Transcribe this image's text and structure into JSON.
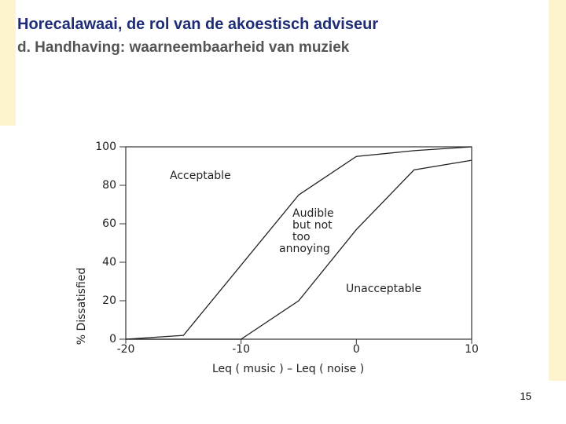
{
  "slide": {
    "title": "Horecalawaai, de rol van de akoestisch adviseur",
    "subtitle": "d. Handhaving: waarneembaarheid van muziek",
    "page_number": "15"
  },
  "chart_data": {
    "type": "line",
    "x_label": "Leq ( music ) – Leq ( noise )",
    "y_label": "% Dissatisfied",
    "annotations": [
      "Acceptable",
      [
        "Audible",
        "but not",
        "too",
        "annoying"
      ],
      "Unacceptable"
    ],
    "series": [
      {
        "color": "#222222",
        "x": [
          -20,
          -15,
          -5,
          0,
          5,
          10
        ],
        "values": [
          0,
          2,
          75,
          95,
          98,
          100
        ]
      },
      {
        "color": "#222222",
        "x": [
          -20,
          -10,
          -5,
          0,
          5,
          10
        ],
        "values": [
          0,
          0,
          20,
          57,
          88,
          93
        ]
      }
    ],
    "xlim": [
      -20,
      10
    ],
    "ylim": [
      0,
      100
    ],
    "xticks": [
      -20,
      -10,
      0,
      10
    ],
    "yticks": [
      0,
      20,
      40,
      60,
      80,
      100
    ]
  }
}
